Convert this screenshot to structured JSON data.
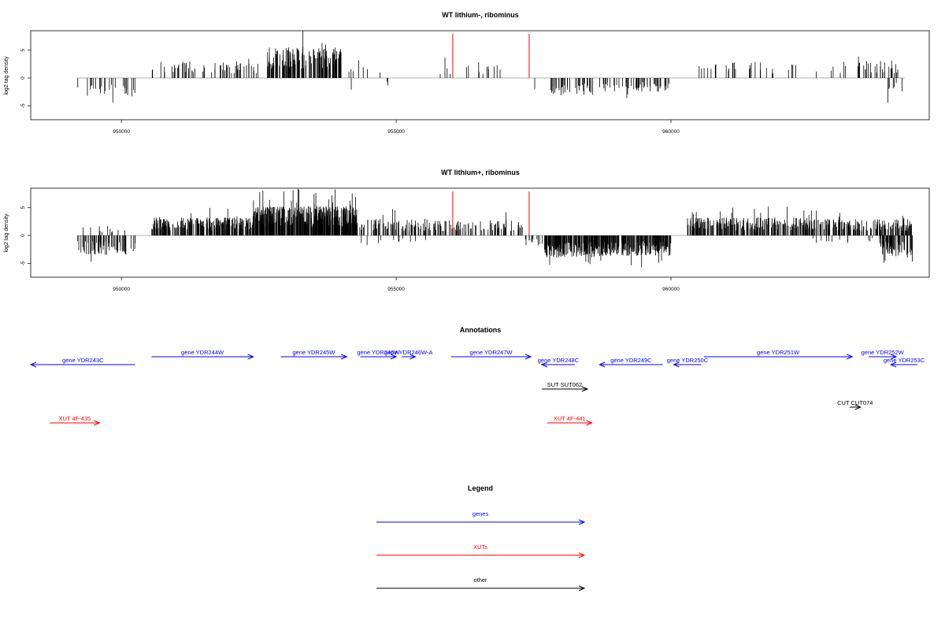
{
  "figure_type": "genome coverage track plot",
  "colors": {
    "gene": "#0000ff",
    "XUT": "#ff0000",
    "other": "#000000",
    "highlight": "#ff0000",
    "baseline": "#999999"
  },
  "chart_data": [
    {
      "type": "bar",
      "title": "WT lithium-, ribominus",
      "ylabel": "log2 tag density",
      "xlim": [
        948350,
        964700
      ],
      "ylim": [
        -7.5,
        8.5
      ],
      "xticks": [
        950000,
        955000,
        960000
      ],
      "xtick_labels": [
        "950000",
        "955000",
        "960000"
      ],
      "yticks": [
        -5,
        0,
        5
      ],
      "ytick_labels": [
        "-5",
        "0",
        "5"
      ],
      "grid": false,
      "highlight_positions": [
        956030,
        957420
      ],
      "signal_segments": [
        {
          "x": [
            949200,
            950250
          ],
          "direction": "minus",
          "level": 2.8,
          "density": 0.35
        },
        {
          "x": [
            950550,
            952500
          ],
          "direction": "plus",
          "level": 2.4,
          "density": 0.45
        },
        {
          "x": [
            952650,
            954000
          ],
          "direction": "plus",
          "level": 4.5,
          "density": 1.6
        },
        {
          "x": [
            954000,
            954800
          ],
          "direction": "plus",
          "level": 2.0,
          "density": 0.12
        },
        {
          "x": [
            954100,
            954900
          ],
          "direction": "minus",
          "level": 1.6,
          "density": 0.05
        },
        {
          "x": [
            955800,
            957300
          ],
          "direction": "plus",
          "level": 2.0,
          "density": 0.14
        },
        {
          "x": [
            957300,
            957600
          ],
          "direction": "minus",
          "level": 1.8,
          "density": 0.06
        },
        {
          "x": [
            957800,
            958600
          ],
          "direction": "minus",
          "level": 2.5,
          "density": 0.7
        },
        {
          "x": [
            958700,
            960000
          ],
          "direction": "minus",
          "level": 2.0,
          "density": 0.55
        },
        {
          "x": [
            960450,
            961700
          ],
          "direction": "plus",
          "level": 2.4,
          "density": 0.25
        },
        {
          "x": [
            961700,
            963500
          ],
          "direction": "plus",
          "level": 2.0,
          "density": 0.12
        },
        {
          "x": [
            963400,
            964150
          ],
          "direction": "plus",
          "level": 2.6,
          "density": 0.6
        },
        {
          "x": [
            963900,
            964250
          ],
          "direction": "minus",
          "level": 2.5,
          "density": 0.3
        }
      ]
    },
    {
      "type": "bar",
      "title": "WT lithium+, ribominus",
      "ylabel": "log2 tag density",
      "xlim": [
        948350,
        964700
      ],
      "ylim": [
        -7.5,
        8.5
      ],
      "xticks": [
        950000,
        955000,
        960000
      ],
      "xtick_labels": [
        "950000",
        "955000",
        "960000"
      ],
      "yticks": [
        -5,
        0,
        5
      ],
      "ytick_labels": [
        "-5",
        "0",
        "5"
      ],
      "grid": false,
      "highlight_positions": [
        956030,
        957420
      ],
      "signal_segments": [
        {
          "x": [
            949200,
            950250
          ],
          "direction": "minus",
          "level": 2.8,
          "density": 0.9
        },
        {
          "x": [
            949300,
            950100
          ],
          "direction": "plus",
          "level": 1.4,
          "density": 0.2
        },
        {
          "x": [
            950550,
            952400
          ],
          "direction": "plus",
          "level": 2.6,
          "density": 1.8
        },
        {
          "x": [
            952400,
            954300
          ],
          "direction": "plus",
          "level": 4.2,
          "density": 3.2
        },
        {
          "x": [
            954300,
            955800
          ],
          "direction": "plus",
          "level": 2.4,
          "density": 0.9
        },
        {
          "x": [
            954300,
            955600
          ],
          "direction": "minus",
          "level": 1.2,
          "density": 0.12
        },
        {
          "x": [
            955800,
            957300
          ],
          "direction": "plus",
          "level": 2.2,
          "density": 0.7
        },
        {
          "x": [
            957300,
            957700
          ],
          "direction": "minus",
          "level": 1.6,
          "density": 0.4
        },
        {
          "x": [
            957700,
            958600
          ],
          "direction": "minus",
          "level": 3.2,
          "density": 2.4
        },
        {
          "x": [
            958600,
            960000
          ],
          "direction": "minus",
          "level": 3.0,
          "density": 2.2
        },
        {
          "x": [
            960300,
            962600
          ],
          "direction": "plus",
          "level": 2.6,
          "density": 1.6
        },
        {
          "x": [
            962600,
            964400
          ],
          "direction": "plus",
          "level": 2.4,
          "density": 1.2
        },
        {
          "x": [
            962500,
            964000
          ],
          "direction": "minus",
          "level": 1.2,
          "density": 0.15
        },
        {
          "x": [
            963800,
            964400
          ],
          "direction": "minus",
          "level": 3.2,
          "density": 1.5
        }
      ]
    }
  ],
  "annotations": {
    "title": "Annotations",
    "features": [
      {
        "label": "gene YDR243C",
        "kind": "gene",
        "strand": "-",
        "start": 948350,
        "end": 950250,
        "row": 1
      },
      {
        "label": "gene YDR244W",
        "kind": "gene",
        "strand": "+",
        "start": 950550,
        "end": 952400,
        "row": 0
      },
      {
        "label": "gene YDR245W",
        "kind": "gene",
        "strand": "+",
        "start": 952900,
        "end": 954100,
        "row": 0
      },
      {
        "label": "gene YDR246W",
        "kind": "gene",
        "strand": "+",
        "start": 954350,
        "end": 955000,
        "row": 0
      },
      {
        "label": "gene YDR246W-A",
        "kind": "gene",
        "strand": "+",
        "start": 955100,
        "end": 955350,
        "row": 0
      },
      {
        "label": "gene YDR247W",
        "kind": "gene",
        "strand": "+",
        "start": 956000,
        "end": 957450,
        "row": 0
      },
      {
        "label": "gene YDR248C",
        "kind": "gene",
        "strand": "-",
        "start": 957650,
        "end": 958250,
        "row": 1
      },
      {
        "label": "gene YDR249C",
        "kind": "gene",
        "strand": "-",
        "start": 958700,
        "end": 959850,
        "row": 1
      },
      {
        "label": "gene YDR250C",
        "kind": "gene",
        "strand": "-",
        "start": 960050,
        "end": 960550,
        "row": 1
      },
      {
        "label": "gene YDR251W",
        "kind": "gene",
        "strand": "+",
        "start": 960600,
        "end": 963300,
        "row": 0
      },
      {
        "label": "gene YDR252W",
        "kind": "gene",
        "strand": "+",
        "start": 963600,
        "end": 964100,
        "row": 0
      },
      {
        "label": "gene YDR253C",
        "kind": "gene",
        "strand": "-",
        "start": 964000,
        "end": 964600,
        "row": 1
      },
      {
        "label": "SUT SUT062",
        "kind": "other",
        "strand": "+",
        "start": 957650,
        "end": 958480,
        "row": 2
      },
      {
        "label": "CUT CUT074",
        "kind": "other",
        "strand": "+",
        "start": 963250,
        "end": 963450,
        "row": 3
      },
      {
        "label": "XUT 4F-435",
        "kind": "XUT",
        "strand": "+",
        "start": 948700,
        "end": 949600,
        "row": 4
      },
      {
        "label": "XUT 4F-441",
        "kind": "XUT",
        "strand": "+",
        "start": 957750,
        "end": 958560,
        "row": 4
      }
    ]
  },
  "legend": {
    "title": "Legend",
    "items": [
      {
        "label": "genes",
        "kind": "gene"
      },
      {
        "label": "XUTs",
        "kind": "XUT"
      },
      {
        "label": "other",
        "kind": "other"
      }
    ]
  }
}
